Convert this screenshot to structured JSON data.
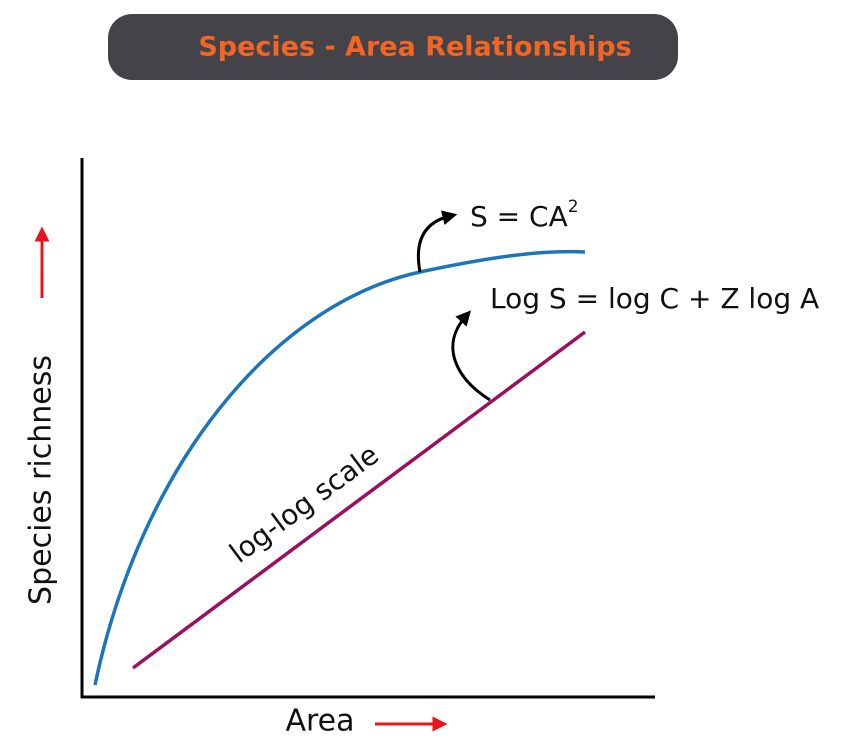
{
  "header": {
    "title": "Species - Area Relationships"
  },
  "axes": {
    "y_label": "Species richness",
    "x_label": "Area"
  },
  "curves": [
    {
      "label": "S = CA",
      "superscript": "2"
    },
    {
      "label": "Log S = log C + Z log A",
      "annotation": "log-log scale"
    }
  ]
}
